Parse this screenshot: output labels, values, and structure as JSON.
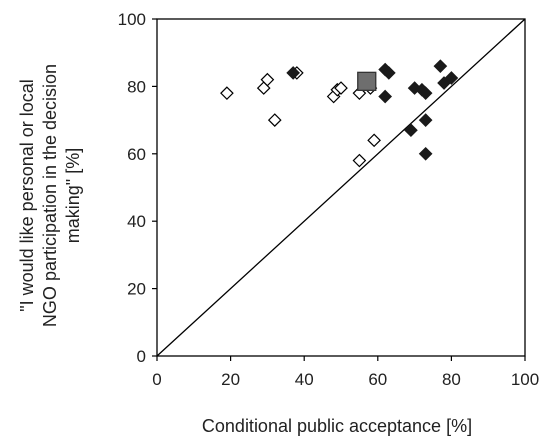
{
  "chart_data": {
    "type": "scatter",
    "title": "",
    "xlabel": "Conditional public acceptance [%]",
    "ylabel_lines": [
      "\"I would like personal or local",
      "NGO participation in the decision",
      "making\" [%]"
    ],
    "xlim": [
      0,
      100
    ],
    "ylim": [
      0,
      100
    ],
    "x_ticks": [
      0,
      20,
      40,
      60,
      80,
      100
    ],
    "y_ticks": [
      0,
      20,
      40,
      60,
      80,
      100
    ],
    "grid": false,
    "diagonal_reference_line": true,
    "series": [
      {
        "marker": "open-diamond",
        "points": [
          {
            "x": 19,
            "y": 78
          },
          {
            "x": 29,
            "y": 79.5
          },
          {
            "x": 30,
            "y": 82
          },
          {
            "x": 32,
            "y": 70
          },
          {
            "x": 38,
            "y": 84
          },
          {
            "x": 48,
            "y": 77
          },
          {
            "x": 49,
            "y": 79
          },
          {
            "x": 50,
            "y": 79.5
          },
          {
            "x": 55,
            "y": 58
          },
          {
            "x": 55,
            "y": 78
          },
          {
            "x": 58,
            "y": 79.5
          },
          {
            "x": 59,
            "y": 64
          }
        ]
      },
      {
        "marker": "filled-diamond",
        "points": [
          {
            "x": 37,
            "y": 84
          },
          {
            "x": 62,
            "y": 77
          },
          {
            "x": 62,
            "y": 85
          },
          {
            "x": 63,
            "y": 84
          },
          {
            "x": 69,
            "y": 67
          },
          {
            "x": 70,
            "y": 79.5
          },
          {
            "x": 72,
            "y": 79
          },
          {
            "x": 73,
            "y": 60
          },
          {
            "x": 73,
            "y": 78
          },
          {
            "x": 73,
            "y": 70
          },
          {
            "x": 77,
            "y": 86
          },
          {
            "x": 78,
            "y": 81
          },
          {
            "x": 80,
            "y": 82.5
          }
        ]
      },
      {
        "marker": "filled-square",
        "points": [
          {
            "x": 57,
            "y": 81.5
          }
        ]
      }
    ],
    "colors": {
      "axis": "#000000",
      "open_marker_stroke": "#000000",
      "filled_marker": "#1a1a1a",
      "square_fill": "#6e6e6e",
      "square_stroke": "#333333"
    }
  }
}
